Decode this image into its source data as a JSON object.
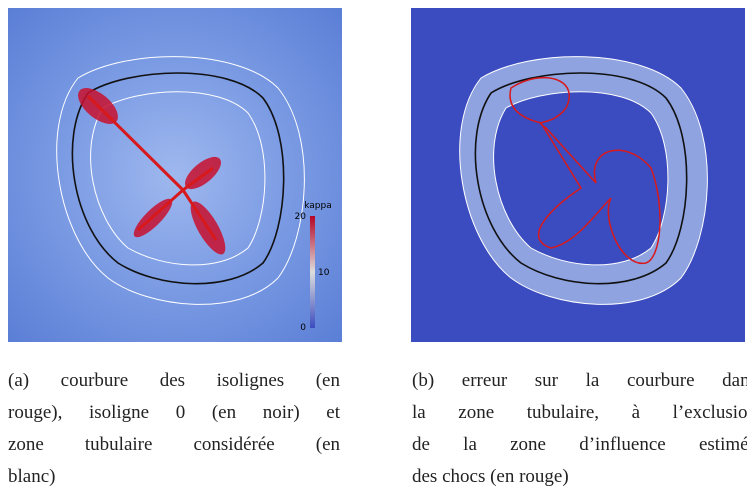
{
  "panels": [
    {
      "colorbar": {
        "title": "kappa",
        "ticks": [
          20,
          10,
          0
        ]
      },
      "caption": [
        "(a) courbure des isolignes (en",
        "rouge), isoligne 0 (en noir) et",
        "zone tubulaire considérée (en",
        "blanc)"
      ]
    },
    {
      "caption": [
        "(b) erreur sur la courbure dans",
        "la zone tubulaire, à l’exclusion",
        "de la zone d’influence estimée",
        "des chocs (en rouge)"
      ]
    }
  ]
}
